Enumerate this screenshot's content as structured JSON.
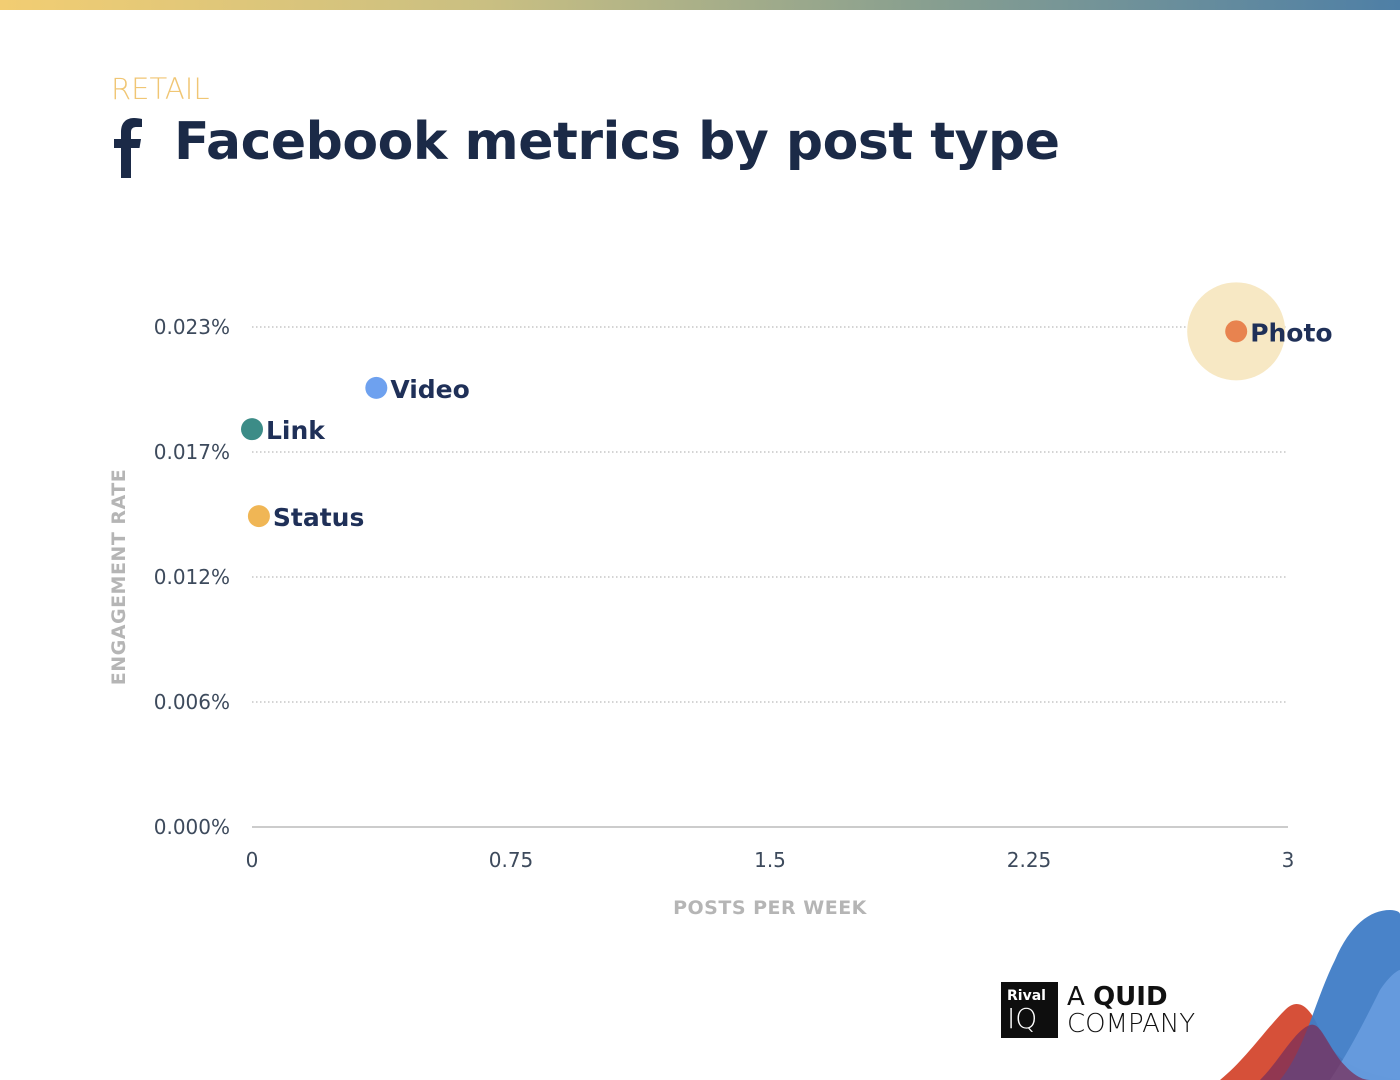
{
  "header": {
    "category": "RETAIL",
    "title": "Facebook metrics by post type"
  },
  "icons": {
    "title_icon": "facebook-f-icon"
  },
  "brand": {
    "logo_box_top": "Rival",
    "logo_box_bottom": "IQ",
    "logo_line1_prefix": "A ",
    "logo_line1_bold": "QUID",
    "logo_line2": "COMPANY"
  },
  "colors": {
    "top_bar_start": "#f2cd72",
    "top_bar_end": "#4e7fa6",
    "category": "#f0c674",
    "title": "#1b2a47",
    "photo": "#e8834f",
    "photo_halo": "#f7e8c4",
    "video": "#6ea1ef",
    "link": "#3c8c87",
    "status": "#f0b655"
  },
  "chart_data": {
    "type": "scatter",
    "xlabel": "POSTS PER WEEK",
    "ylabel": "ENGAGEMENT RATE",
    "xlim": [
      0,
      3
    ],
    "ylim": [
      0,
      0.023
    ],
    "x_ticks": [
      0,
      0.75,
      1.5,
      2.25,
      3
    ],
    "x_tick_labels": [
      "0",
      "0.75",
      "1.5",
      "2.25",
      "3"
    ],
    "y_ticks": [
      0,
      0.00575,
      0.0115,
      0.01725,
      0.023
    ],
    "y_tick_labels": [
      "0.000%",
      "0.006%",
      "0.012%",
      "0.017%",
      "0.023%"
    ],
    "grid": "horizontal-dotted",
    "series": [
      {
        "name": "Photo",
        "x": 2.85,
        "y": 0.0228,
        "color": "#e8834f",
        "highlight": true
      },
      {
        "name": "Video",
        "x": 0.36,
        "y": 0.0202,
        "color": "#6ea1ef"
      },
      {
        "name": "Link",
        "x": 0.0,
        "y": 0.0183,
        "color": "#3c8c87"
      },
      {
        "name": "Status",
        "x": 0.02,
        "y": 0.0143,
        "color": "#f0b655"
      }
    ]
  }
}
